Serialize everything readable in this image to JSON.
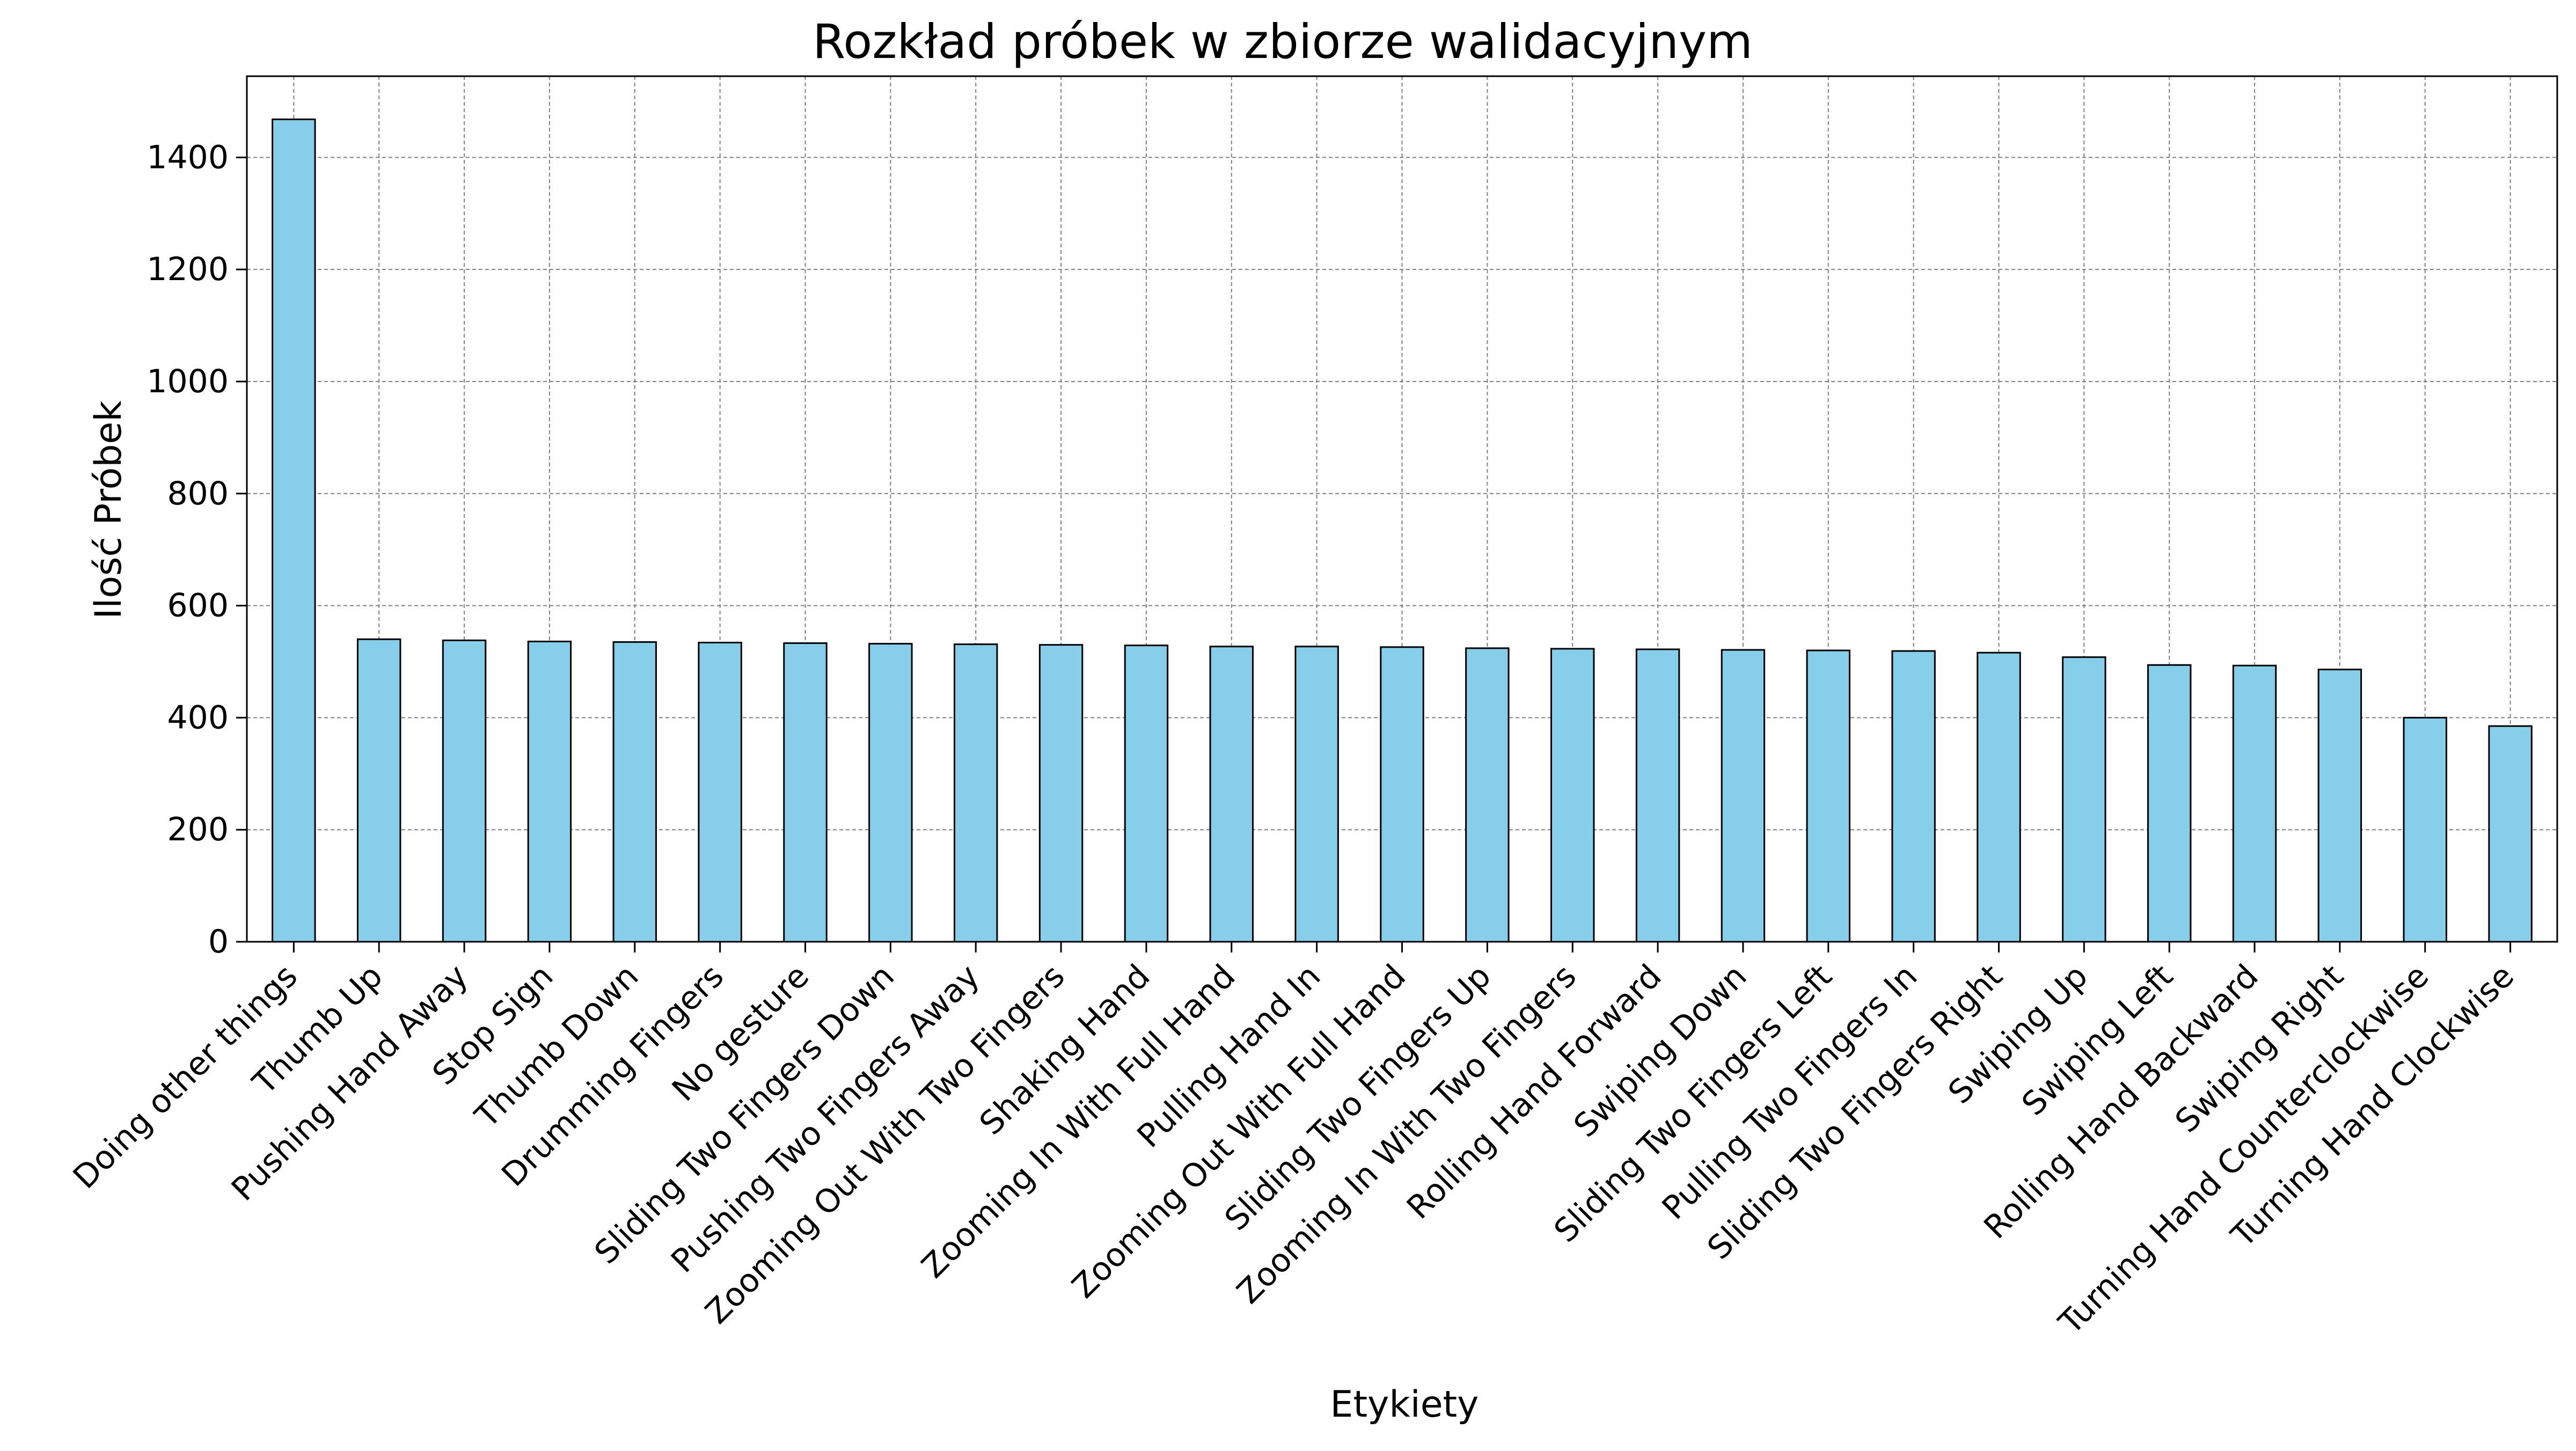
{
  "chart_data": {
    "type": "bar",
    "title": "Rozkład próbek w zbiorze walidacyjnym",
    "xlabel": "Etykiety",
    "ylabel": "Ilość Próbek",
    "ylim": [
      0,
      1545
    ],
    "yticks": [
      0,
      200,
      400,
      600,
      800,
      1000,
      1200,
      1400
    ],
    "grid": true,
    "legend": "none",
    "colors": {
      "bar_fill": "#87CEEB",
      "bar_edge": "#000000",
      "grid": "#808080",
      "axis": "#000000"
    },
    "categories": [
      "Doing other things",
      "Thumb Up",
      "Pushing Hand Away",
      "Stop Sign",
      "Thumb Down",
      "Drumming Fingers",
      "No gesture",
      "Sliding Two Fingers Down",
      "Pushing Two Fingers Away",
      "Zooming Out With Two Fingers",
      "Shaking Hand",
      "Zooming In With Full Hand",
      "Pulling Hand In",
      "Zooming Out With Full Hand",
      "Sliding Two Fingers Up",
      "Zooming In With Two Fingers",
      "Rolling Hand Forward",
      "Swiping Down",
      "Sliding Two Fingers Left",
      "Pulling Two Fingers In",
      "Sliding Two Fingers Right",
      "Swiping Up",
      "Swiping Left",
      "Rolling Hand Backward",
      "Swiping Right",
      "Turning Hand Counterclockwise",
      "Turning Hand Clockwise"
    ],
    "values": [
      1468,
      540,
      538,
      536,
      535,
      534,
      533,
      532,
      531,
      530,
      529,
      527,
      527,
      526,
      524,
      523,
      522,
      521,
      520,
      519,
      516,
      508,
      494,
      493,
      486,
      400,
      385
    ]
  }
}
